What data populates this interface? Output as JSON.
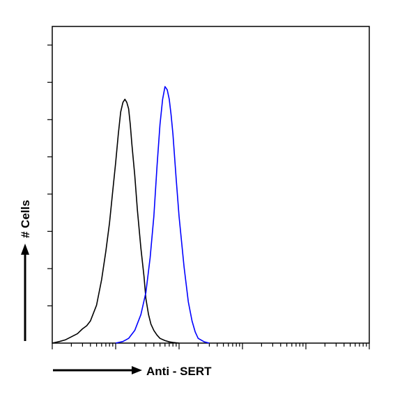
{
  "chart_data": {
    "type": "line",
    "title": "",
    "xlabel": "Anti - SERT",
    "ylabel": "# Cells",
    "x_scale": "log",
    "xlim": [
      1,
      100000
    ],
    "ylim": [
      0,
      1
    ],
    "grid": false,
    "legend": "none",
    "series": [
      {
        "color": "#000000",
        "x": [
          1,
          1.3,
          1.6,
          2,
          2.5,
          3,
          3.5,
          4,
          5,
          6,
          7,
          8,
          9,
          10,
          11,
          12,
          13,
          14,
          15,
          16,
          17,
          18,
          20,
          22,
          25,
          28,
          30,
          33,
          36,
          40,
          45,
          50,
          60,
          70,
          80,
          90,
          100
        ],
        "y": [
          0.0,
          0.005,
          0.01,
          0.02,
          0.03,
          0.045,
          0.055,
          0.07,
          0.12,
          0.2,
          0.29,
          0.38,
          0.48,
          0.57,
          0.66,
          0.73,
          0.76,
          0.77,
          0.76,
          0.74,
          0.69,
          0.63,
          0.53,
          0.42,
          0.3,
          0.21,
          0.14,
          0.09,
          0.06,
          0.04,
          0.025,
          0.015,
          0.008,
          0.004,
          0.002,
          0.001,
          0.0
        ]
      },
      {
        "color": "#0000ff",
        "x": [
          10,
          13,
          16,
          20,
          25,
          30,
          35,
          40,
          45,
          50,
          55,
          60,
          65,
          70,
          75,
          80,
          90,
          100,
          120,
          140,
          160,
          180,
          200,
          250,
          300
        ],
        "y": [
          0.0,
          0.005,
          0.015,
          0.04,
          0.09,
          0.16,
          0.27,
          0.4,
          0.56,
          0.69,
          0.77,
          0.81,
          0.8,
          0.77,
          0.72,
          0.66,
          0.52,
          0.4,
          0.24,
          0.13,
          0.07,
          0.035,
          0.015,
          0.004,
          0.0
        ]
      }
    ]
  },
  "colors": {
    "axis": "#000000",
    "isotype": "#000000",
    "antibody": "#0000ff"
  }
}
